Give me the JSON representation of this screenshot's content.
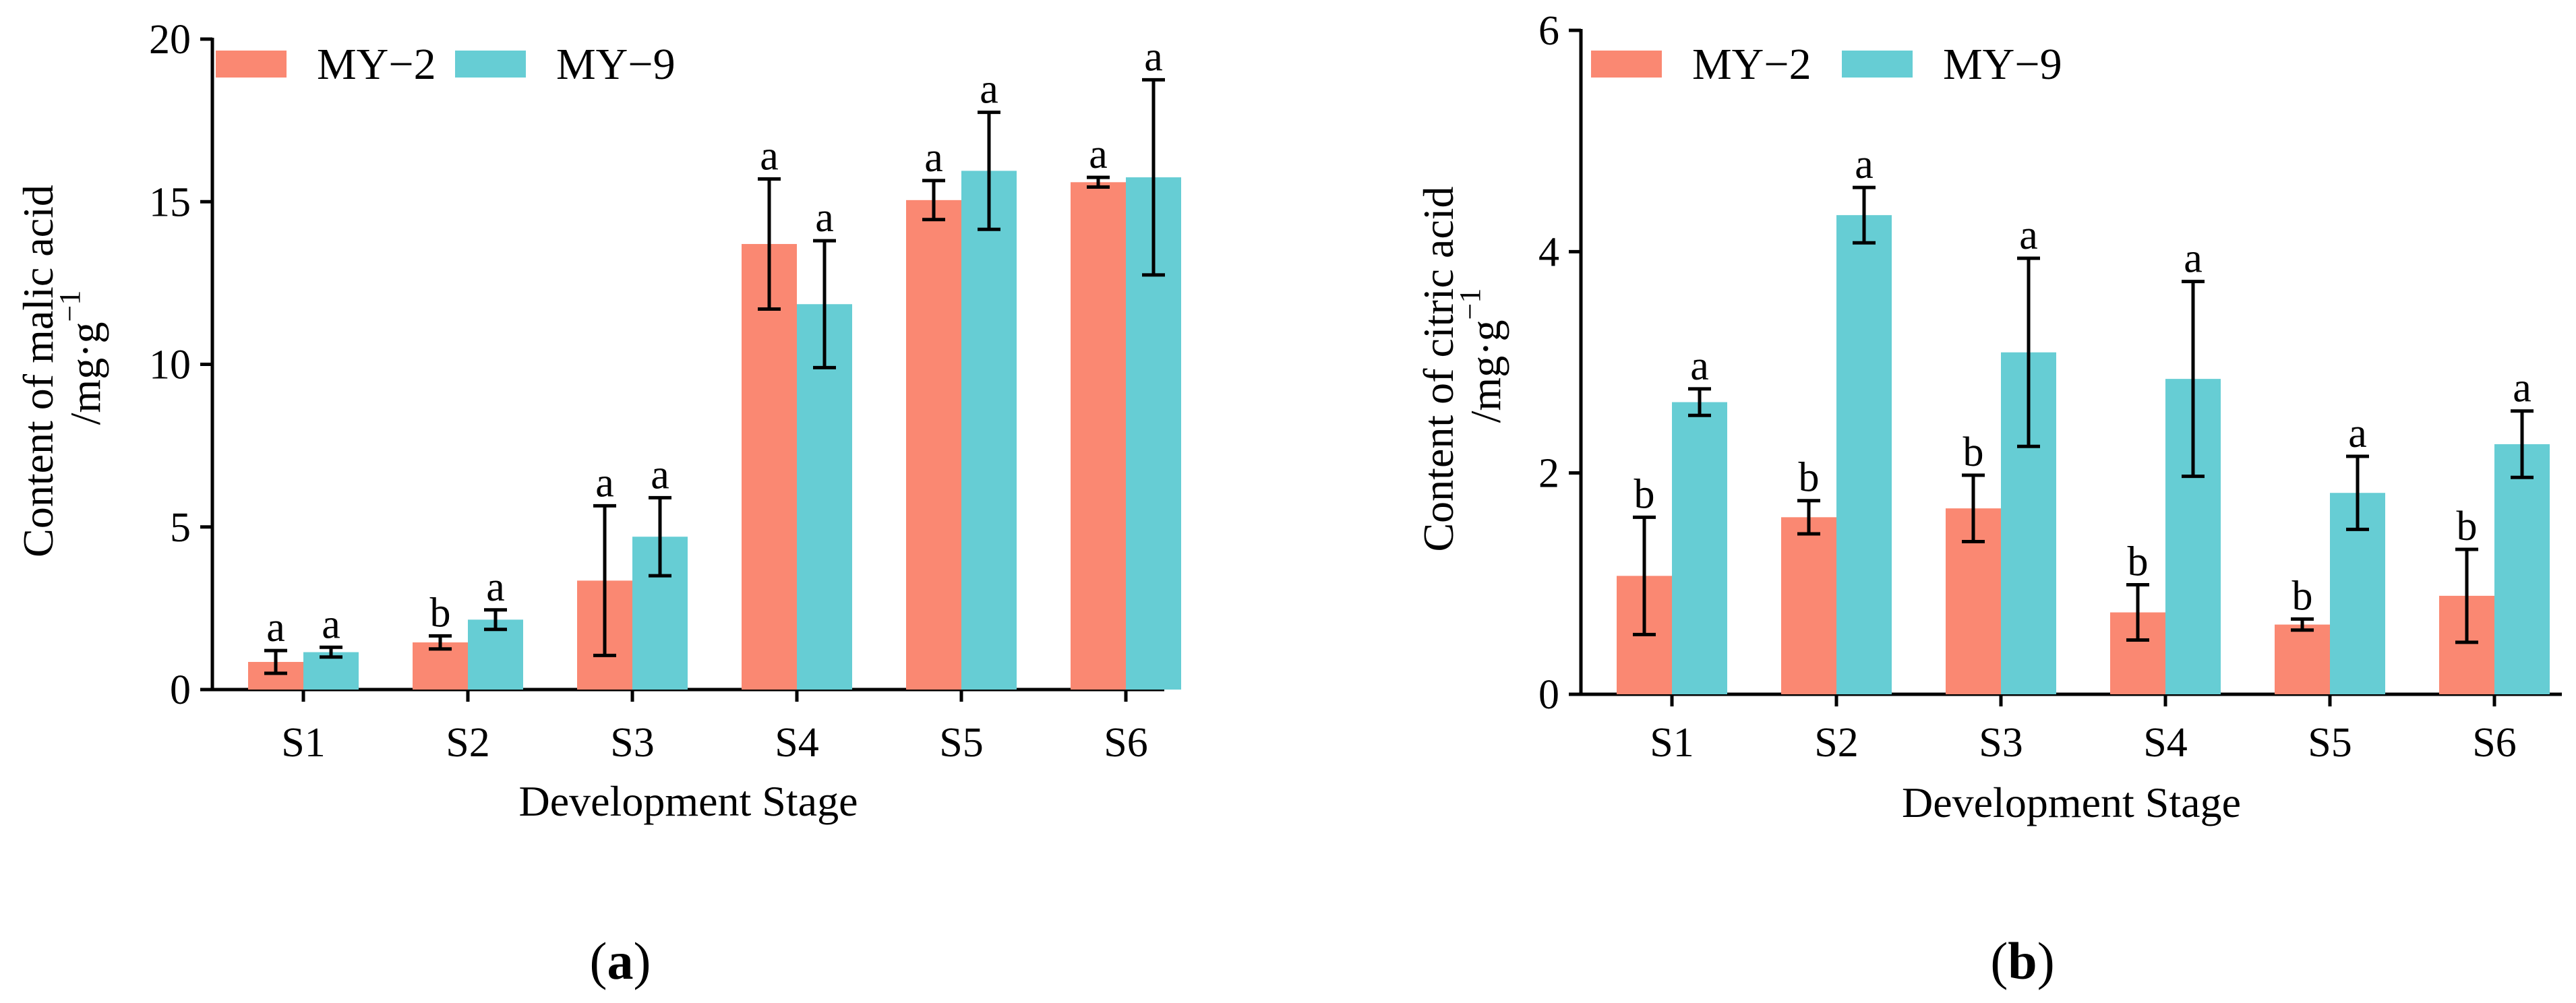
{
  "chart_data": [
    {
      "type": "bar",
      "panel_label": "a",
      "title": "",
      "xlabel": "Development Stage",
      "ylabel": "Content of malic acid",
      "ylabel_unit": "/mg·g",
      "ylabel_unit_exp": "−1",
      "ylim": [
        0,
        20
      ],
      "yticks": [
        "0",
        "5",
        "10",
        "15",
        "20"
      ],
      "categories": [
        "S1",
        "S2",
        "S3",
        "S4",
        "S5",
        "S6"
      ],
      "legend_position": "top-left",
      "series": [
        {
          "name": "MY−2",
          "color": "#FA8872",
          "values": [
            0.85,
            1.45,
            3.35,
            13.7,
            15.05,
            15.6
          ],
          "errors": [
            0.35,
            0.2,
            2.3,
            2.0,
            0.6,
            0.15
          ],
          "letters": [
            "a",
            "b",
            "a",
            "a",
            "a",
            "a"
          ]
        },
        {
          "name": "MY−9",
          "color": "#66CDD4",
          "values": [
            1.15,
            2.15,
            4.7,
            11.85,
            15.95,
            15.75
          ],
          "errors": [
            0.15,
            0.3,
            1.2,
            1.95,
            1.8,
            3.0
          ],
          "letters": [
            "a",
            "a",
            "a",
            "a",
            "a",
            "a"
          ]
        }
      ]
    },
    {
      "type": "bar",
      "panel_label": "b",
      "title": "",
      "xlabel": "Development Stage",
      "ylabel": "Content of citric acid",
      "ylabel_unit": "/mg·g",
      "ylabel_unit_exp": "−1",
      "ylim": [
        0,
        6
      ],
      "yticks": [
        "0",
        "2",
        "4",
        "6"
      ],
      "categories": [
        "S1",
        "S2",
        "S3",
        "S4",
        "S5",
        "S6"
      ],
      "legend_position": "top-left",
      "series": [
        {
          "name": "MY−2",
          "color": "#FA8872",
          "values": [
            1.07,
            1.6,
            1.68,
            0.74,
            0.63,
            0.89
          ],
          "errors": [
            0.53,
            0.15,
            0.3,
            0.25,
            0.05,
            0.42
          ],
          "letters": [
            "b",
            "b",
            "b",
            "b",
            "b",
            "b"
          ]
        },
        {
          "name": "MY−9",
          "color": "#66CDD4",
          "values": [
            2.64,
            4.33,
            3.09,
            2.85,
            1.82,
            2.26
          ],
          "errors": [
            0.12,
            0.25,
            0.85,
            0.88,
            0.33,
            0.3
          ],
          "letters": [
            "a",
            "a",
            "a",
            "a",
            "a",
            "a"
          ]
        }
      ]
    }
  ]
}
